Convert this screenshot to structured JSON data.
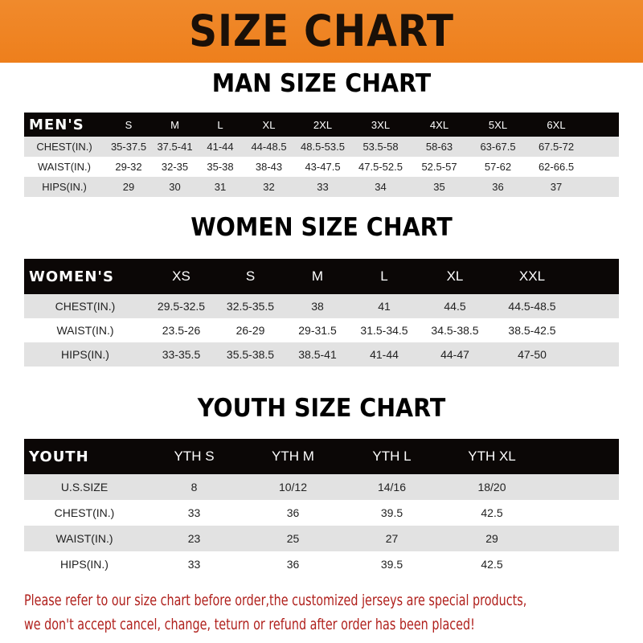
{
  "banner_title": "SIZE CHART",
  "men": {
    "title": "MAN SIZE CHART",
    "header": [
      "MEN'S",
      "S",
      "M",
      "L",
      "XL",
      "2XL",
      "3XL",
      "4XL",
      "5XL",
      "6XL"
    ],
    "rows": [
      [
        "CHEST(IN.)",
        "35-37.5",
        "37.5-41",
        "41-44",
        "44-48.5",
        "48.5-53.5",
        "53.5-58",
        "58-63",
        "63-67.5",
        "67.5-72"
      ],
      [
        "WAIST(IN.)",
        "29-32",
        "32-35",
        "35-38",
        "38-43",
        "43-47.5",
        "47.5-52.5",
        "52.5-57",
        "57-62",
        "62-66.5"
      ],
      [
        "HIPS(IN.)",
        "29",
        "30",
        "31",
        "32",
        "33",
        "34",
        "35",
        "36",
        "37"
      ]
    ]
  },
  "women": {
    "title": "WOMEN SIZE CHART",
    "header": [
      "WOMEN'S",
      "XS",
      "S",
      "M",
      "L",
      "XL",
      "XXL"
    ],
    "rows": [
      [
        "CHEST(IN.)",
        "29.5-32.5",
        "32.5-35.5",
        "38",
        "41",
        "44.5",
        "44.5-48.5"
      ],
      [
        "WAIST(IN.)",
        "23.5-26",
        "26-29",
        "29-31.5",
        "31.5-34.5",
        "34.5-38.5",
        "38.5-42.5"
      ],
      [
        "HIPS(IN.)",
        "33-35.5",
        "35.5-38.5",
        "38.5-41",
        "41-44",
        "44-47",
        "47-50"
      ]
    ]
  },
  "youth": {
    "title": "YOUTH SIZE CHART",
    "header": [
      "YOUTH",
      "YTH S",
      "YTH M",
      "YTH L",
      "YTH XL"
    ],
    "rows": [
      [
        "U.S.SIZE",
        "8",
        "10/12",
        "14/16",
        "18/20"
      ],
      [
        "CHEST(IN.)",
        "33",
        "36",
        "39.5",
        "42.5"
      ],
      [
        "WAIST(IN.)",
        "23",
        "25",
        "27",
        "29"
      ],
      [
        "HIPS(IN.)",
        "33",
        "36",
        "39.5",
        "42.5"
      ]
    ]
  },
  "notice": [
    "Please refer to our size chart before order,the customized jerseys are special products,",
    "we don't accept cancel, change, teturn or refund after order has been placed!"
  ],
  "colors": {
    "banner": "#ef8424",
    "header_row": "#0b0706",
    "stripe": "#e2e2e2",
    "notice": "#b0201c"
  }
}
